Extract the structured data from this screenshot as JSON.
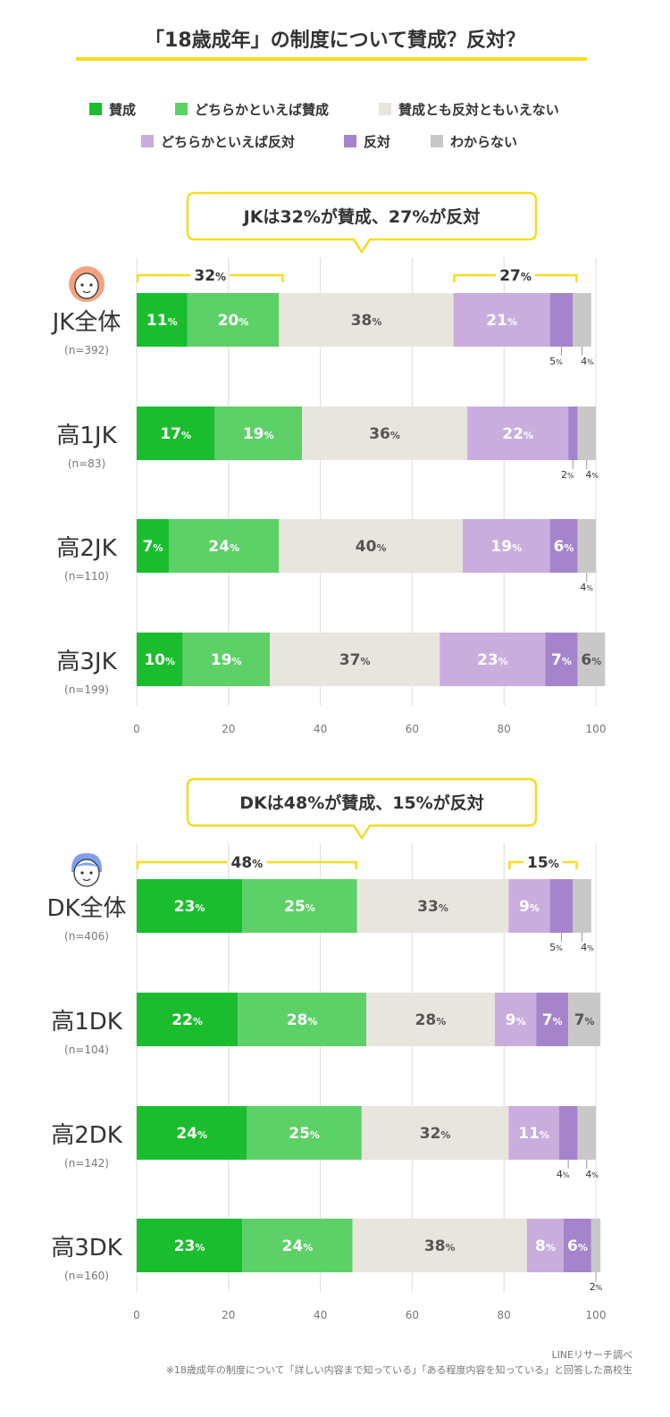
{
  "title": "「18歳成年」の制度について賛成？反対？",
  "colors": {
    "accent_yellow": "#f5dd1e",
    "grid": "#dcdcdc"
  },
  "legend": [
    {
      "label": "賛成",
      "color": "#1bbd2e"
    },
    {
      "label": "どちらかといえば賛成",
      "color": "#5ed068"
    },
    {
      "label": "賛成とも反対ともいえない",
      "color": "#e8e4de"
    },
    {
      "label": "どちらかといえば反対",
      "color": "#c9aedd"
    },
    {
      "label": "反対",
      "color": "#a584cc"
    },
    {
      "label": "わからない",
      "color": "#c8c8c8"
    }
  ],
  "panels": [
    {
      "callout": "JKは32%が賛成、27%が反対",
      "brackets": [
        {
          "value": "32",
          "unit": "%",
          "from": 0,
          "to": 32
        },
        {
          "value": "27",
          "unit": "%",
          "from": 69,
          "to": 96
        }
      ],
      "icon": "girl-face-icon"
    },
    {
      "callout": "DKは48%が賛成、15%が反対",
      "brackets": [
        {
          "value": "48",
          "unit": "%",
          "from": 0,
          "to": 48
        },
        {
          "value": "15",
          "unit": "%",
          "from": 81,
          "to": 96
        }
      ],
      "icon": "boy-face-icon"
    }
  ],
  "chart_data": [
    {
      "type": "bar",
      "orientation": "horizontal-stacked",
      "xlim": [
        0,
        100
      ],
      "xticks": [
        "0",
        "20",
        "40",
        "60",
        "80",
        "100"
      ],
      "categories": [
        "JK全体",
        "高1JK",
        "高2JK",
        "高3JK"
      ],
      "category_notes": [
        "(n=392)",
        "(n=83)",
        "(n=110)",
        "(n=199)"
      ],
      "series": [
        {
          "name": "賛成",
          "values": [
            11,
            17,
            7,
            10
          ]
        },
        {
          "name": "どちらかといえば賛成",
          "values": [
            20,
            19,
            24,
            19
          ]
        },
        {
          "name": "賛成とも反対ともいえない",
          "values": [
            38,
            36,
            40,
            37
          ]
        },
        {
          "name": "どちらかといえば反対",
          "values": [
            21,
            22,
            19,
            23
          ]
        },
        {
          "name": "反対",
          "values": [
            5,
            2,
            6,
            7
          ]
        },
        {
          "name": "わからない",
          "values": [
            4,
            4,
            4,
            6
          ]
        }
      ],
      "grid": true
    },
    {
      "type": "bar",
      "orientation": "horizontal-stacked",
      "xlim": [
        0,
        100
      ],
      "xticks": [
        "0",
        "20",
        "40",
        "60",
        "80",
        "100"
      ],
      "categories": [
        "DK全体",
        "高1DK",
        "高2DK",
        "高3DK"
      ],
      "category_notes": [
        "(n=406)",
        "(n=104)",
        "(n=142)",
        "(n=160)"
      ],
      "series": [
        {
          "name": "賛成",
          "values": [
            23,
            22,
            24,
            23
          ]
        },
        {
          "name": "どちらかといえば賛成",
          "values": [
            25,
            28,
            25,
            24
          ]
        },
        {
          "name": "賛成とも反対ともいえない",
          "values": [
            33,
            28,
            32,
            38
          ]
        },
        {
          "name": "どちらかといえば反対",
          "values": [
            9,
            9,
            11,
            8
          ]
        },
        {
          "name": "反対",
          "values": [
            5,
            7,
            4,
            6
          ]
        },
        {
          "name": "わからない",
          "values": [
            4,
            7,
            4,
            2
          ]
        }
      ],
      "grid": true
    }
  ],
  "source": {
    "line1": "LINEリサーチ調べ",
    "line2": "※18歳成年の制度について「詳しい内容まで知っている」「ある程度内容を知っている」と回答した高校生"
  },
  "pct_unit": "%"
}
